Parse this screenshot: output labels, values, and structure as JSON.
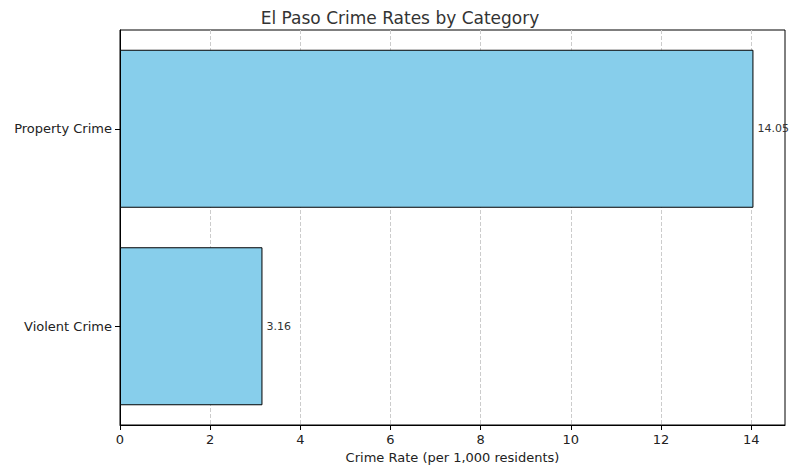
{
  "chart_data": {
    "type": "bar",
    "orientation": "horizontal",
    "title": "El Paso Crime Rates by Category",
    "x_label": "Crime Rate (per 1,000 residents)",
    "categories": [
      "Violent Crime",
      "Property Crime"
    ],
    "values": [
      3.16,
      14.05
    ],
    "color": "#87ceeb",
    "xlim": [
      0,
      14.75
    ],
    "xticks": [
      0,
      2,
      4,
      6,
      8,
      10,
      12,
      14
    ],
    "grid": true,
    "data_labels": true
  }
}
